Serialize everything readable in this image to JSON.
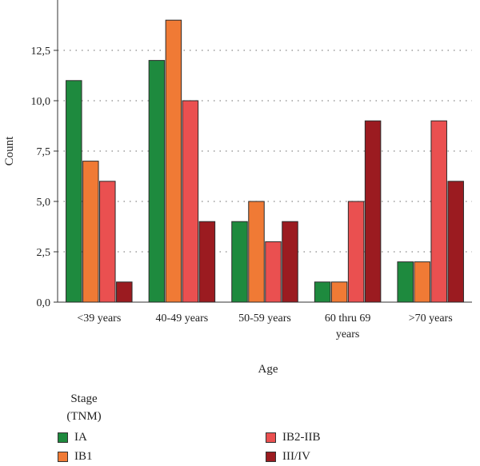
{
  "chart_data": {
    "type": "bar",
    "title": "",
    "xlabel": "Age",
    "ylabel": "Count",
    "ylim": [
      0,
      15
    ],
    "yticks": [
      "0,0",
      "2,5",
      "5,0",
      "7,5",
      "10,0",
      "12,5"
    ],
    "ytick_values": [
      0,
      2.5,
      5,
      7.5,
      10,
      12.5
    ],
    "grid": true,
    "categories": [
      "<39 years",
      "40-49 years",
      "50-59 years",
      "60 thru 69 years",
      ">70 years"
    ],
    "category_lines": [
      [
        "<39 years"
      ],
      [
        "40-49 years"
      ],
      [
        "50-59 years"
      ],
      [
        "60 thru 69",
        "years"
      ],
      [
        ">70 years"
      ]
    ],
    "series": [
      {
        "name": "IA",
        "color": "#1e8a3e",
        "values": [
          11,
          12,
          4,
          1,
          2
        ]
      },
      {
        "name": "IB1",
        "color": "#f07a35",
        "values": [
          7,
          14,
          5,
          1,
          2
        ]
      },
      {
        "name": "IB2-IIB",
        "color": "#ea5050",
        "values": [
          6,
          10,
          3,
          5,
          9
        ]
      },
      {
        "name": "III/IV",
        "color": "#9b1b20",
        "values": [
          1,
          4,
          4,
          9,
          6
        ]
      }
    ],
    "legend_title": "Stage (TNM)",
    "legend_title_lines": [
      "Stage",
      "(TNM)"
    ],
    "legend_position": "bottom-left"
  }
}
